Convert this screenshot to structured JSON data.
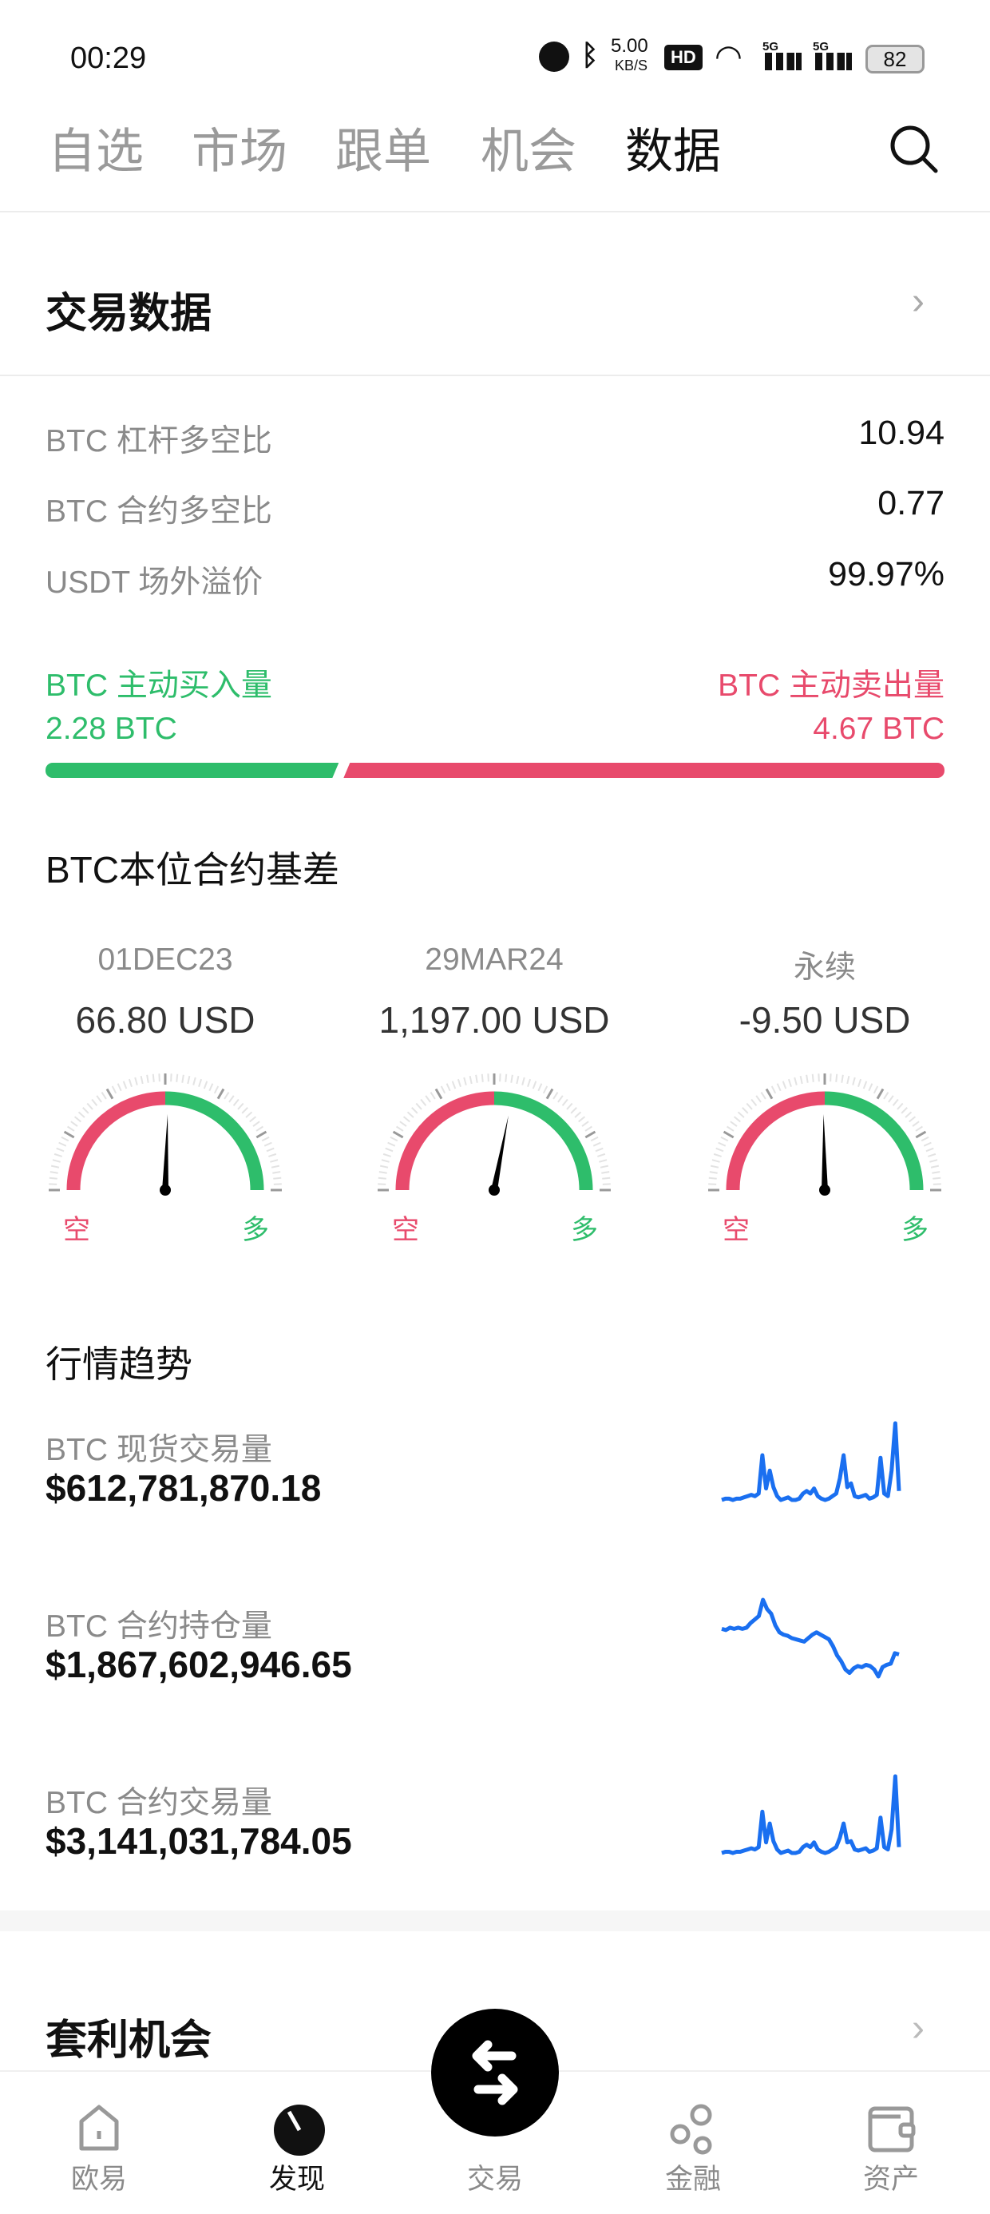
{
  "status_bar": {
    "time": "00:29",
    "net_speed": "5.00",
    "net_unit": "KB/S",
    "hd": "HD",
    "signal1": "5G",
    "signal2": "5G",
    "battery": "82"
  },
  "top_tabs": [
    {
      "label": "自选"
    },
    {
      "label": "市场"
    },
    {
      "label": "跟单"
    },
    {
      "label": "机会"
    },
    {
      "label": "数据",
      "active": true
    }
  ],
  "trade_data": {
    "title": "交易数据",
    "rows": [
      {
        "label": "BTC 杠杆多空比",
        "value": "10.94"
      },
      {
        "label": "BTC 合约多空比",
        "value": "0.77"
      },
      {
        "label": "USDT 场外溢价",
        "value": "99.97%"
      }
    ],
    "buy_label": "BTC 主动买入量",
    "buy_value": "2.28 BTC",
    "sell_label": "BTC 主动卖出量",
    "sell_value": "4.67 BTC",
    "buy_fraction": 0.328
  },
  "basis": {
    "title": "BTC本位合约基差",
    "short_label": "空",
    "long_label": "多",
    "items": [
      {
        "date": "01DEC23",
        "value": "66.80 USD",
        "needle": 0.51
      },
      {
        "date": "29MAR24",
        "value": "1,197.00 USD",
        "needle": 0.56
      },
      {
        "date": "永续",
        "value": "-9.50 USD",
        "needle": 0.495
      }
    ]
  },
  "trend": {
    "title": "行情趋势",
    "items": [
      {
        "label": "BTC 现货交易量",
        "value": "$612,781,870.18",
        "spark": [
          5,
          6,
          6,
          5,
          6,
          6,
          7,
          8,
          9,
          8,
          10,
          40,
          14,
          28,
          15,
          8,
          5,
          6,
          7,
          5,
          5,
          6,
          10,
          12,
          10,
          14,
          8,
          6,
          5,
          6,
          8,
          10,
          22,
          40,
          15,
          18,
          8,
          7,
          8,
          9,
          6,
          7,
          9,
          38,
          10,
          8,
          28,
          65,
          12
        ]
      },
      {
        "label": "BTC 合约持仓量",
        "value": "$1,867,602,946.65",
        "spark": [
          55,
          54,
          56,
          55,
          56,
          55,
          56,
          60,
          63,
          66,
          80,
          72,
          68,
          58,
          52,
          50,
          49,
          47,
          46,
          45,
          44,
          47,
          50,
          52,
          50,
          48,
          46,
          40,
          32,
          27,
          20,
          17,
          21,
          23,
          22,
          24,
          23,
          20,
          14,
          22,
          24,
          25,
          34,
          33
        ]
      },
      {
        "label": "BTC 合约交易量",
        "value": "$3,141,031,784.05",
        "spark": [
          5,
          6,
          6,
          5,
          6,
          6,
          7,
          8,
          9,
          8,
          10,
          40,
          14,
          30,
          15,
          8,
          5,
          6,
          7,
          5,
          5,
          6,
          10,
          12,
          10,
          14,
          8,
          6,
          5,
          6,
          8,
          10,
          18,
          30,
          14,
          15,
          8,
          7,
          8,
          9,
          6,
          7,
          9,
          35,
          10,
          8,
          25,
          70,
          10
        ]
      }
    ],
    "line_color": "#1a6ff0"
  },
  "arbitrage": {
    "title": "套利机会"
  },
  "bottom_nav": [
    {
      "label": "欧易"
    },
    {
      "label": "发现",
      "active": true
    },
    {
      "label": "交易"
    },
    {
      "label": "金融"
    },
    {
      "label": "资产"
    }
  ],
  "colors": {
    "green": "#2ebd6b",
    "red": "#e84a6c",
    "text_gray": "#8a8a8a"
  }
}
